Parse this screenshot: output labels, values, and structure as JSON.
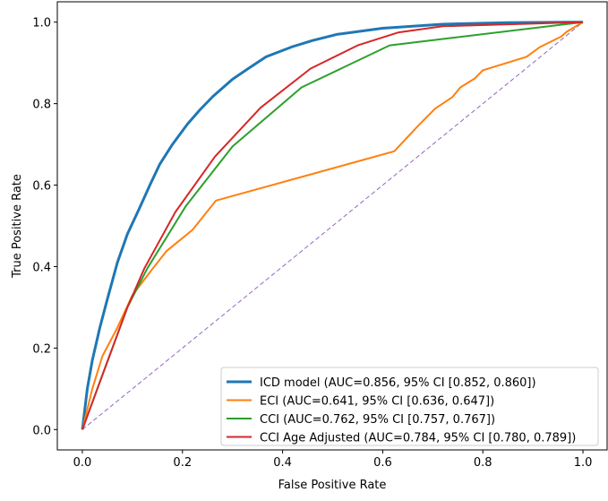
{
  "chart_data": {
    "type": "line",
    "title": "",
    "xlabel": "False Positive Rate",
    "ylabel": "True Positive Rate",
    "xlim": [
      -0.05,
      1.05
    ],
    "ylim": [
      -0.05,
      1.05
    ],
    "xticks": [
      "0.0",
      "0.2",
      "0.4",
      "0.6",
      "0.8",
      "1.0"
    ],
    "yticks": [
      "0.0",
      "0.2",
      "0.4",
      "0.6",
      "0.8",
      "1.0"
    ],
    "grid": false,
    "legend_position": "lower-right",
    "series": [
      {
        "name": "ICD model (AUC=0.856, 95% CI [0.852, 0.860])",
        "color": "#1f77b4",
        "width": 3,
        "x": [
          0,
          0.01,
          0.02,
          0.035,
          0.05,
          0.07,
          0.09,
          0.113,
          0.135,
          0.155,
          0.18,
          0.21,
          0.235,
          0.261,
          0.3,
          0.33,
          0.367,
          0.42,
          0.46,
          0.508,
          0.6,
          0.72,
          0.85,
          1
        ],
        "y": [
          0,
          0.1,
          0.17,
          0.25,
          0.32,
          0.41,
          0.48,
          0.54,
          0.6,
          0.652,
          0.7,
          0.75,
          0.785,
          0.818,
          0.86,
          0.885,
          0.915,
          0.94,
          0.955,
          0.97,
          0.985,
          0.995,
          0.999,
          1
        ]
      },
      {
        "name": "ECI (AUC=0.641, 95% CI [0.636, 0.647])",
        "color": "#ff7f0e",
        "width": 2,
        "x": [
          0,
          0.02,
          0.04,
          0.07,
          0.1,
          0.125,
          0.141,
          0.168,
          0.22,
          0.267,
          0.623,
          0.671,
          0.705,
          0.739,
          0.755,
          0.784,
          0.8,
          0.887,
          0.914,
          0.957,
          0.967,
          1
        ],
        "y": [
          0,
          0.1,
          0.18,
          0.25,
          0.33,
          0.37,
          0.396,
          0.438,
          0.49,
          0.562,
          0.683,
          0.746,
          0.788,
          0.816,
          0.84,
          0.862,
          0.882,
          0.915,
          0.939,
          0.965,
          0.976,
          1
        ]
      },
      {
        "name": "CCI (AUC=0.762, 95% CI [0.757, 0.767])",
        "color": "#2ca02c",
        "width": 2,
        "x": [
          0,
          0.03,
          0.06,
          0.09,
          0.13,
          0.207,
          0.3,
          0.438,
          0.614,
          1
        ],
        "y": [
          0,
          0.1,
          0.2,
          0.3,
          0.396,
          0.549,
          0.695,
          0.84,
          0.943,
          1
        ]
      },
      {
        "name": "CCI Age Adjusted (AUC=0.784, 95% CI [0.780, 0.789])",
        "color": "#d62728",
        "width": 2,
        "x": [
          0,
          0.03,
          0.06,
          0.09,
          0.124,
          0.186,
          0.265,
          0.356,
          0.456,
          0.55,
          0.632,
          0.72,
          1
        ],
        "y": [
          0,
          0.1,
          0.2,
          0.3,
          0.396,
          0.534,
          0.67,
          0.79,
          0.886,
          0.943,
          0.975,
          0.99,
          1
        ]
      }
    ],
    "reference_line": {
      "x": [
        0,
        1
      ],
      "y": [
        0,
        1
      ],
      "color": "#9467bd",
      "style": "dashed"
    }
  }
}
